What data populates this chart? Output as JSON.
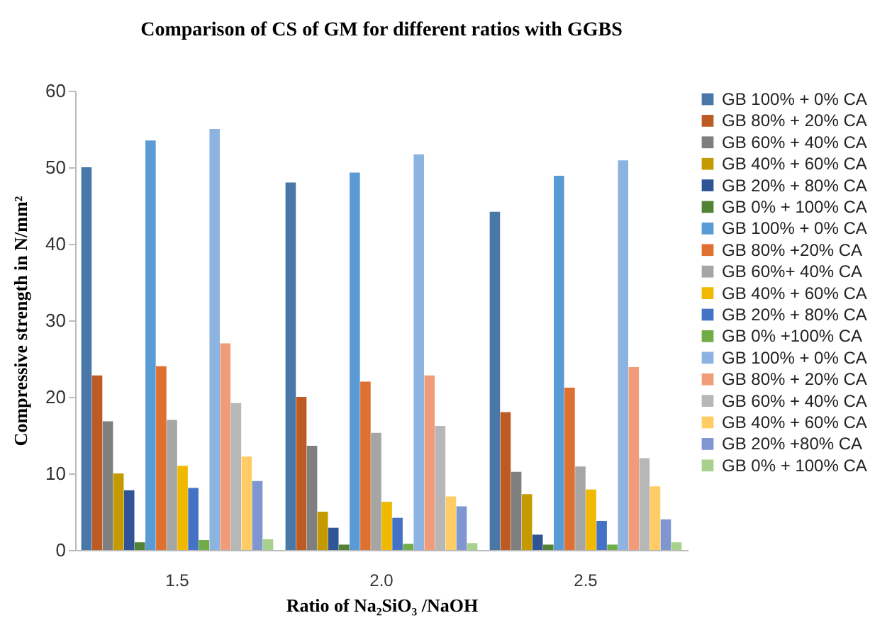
{
  "chart_data": {
    "type": "bar",
    "title": "Comparison of CS of GM for different ratios with GGBS",
    "xlabel": "Ratio of Na₂SiO₃ /NaOH",
    "ylabel": "Compressive strength in N/mm²",
    "categories": [
      "1.5",
      "2.0",
      "2.5"
    ],
    "ylim": [
      0,
      60
    ],
    "yticks": [
      0,
      10,
      20,
      30,
      40,
      50,
      60
    ],
    "legend": "right",
    "series": [
      {
        "name": "GB 100% + 0% CA",
        "color": "#4877a8",
        "values": [
          50,
          48,
          44.2
        ]
      },
      {
        "name": "GB 80% + 20% CA",
        "color": "#bd5b25",
        "values": [
          22.8,
          20,
          18
        ]
      },
      {
        "name": "GB 60% + 40% CA",
        "color": "#7f7f7f",
        "values": [
          16.8,
          13.6,
          10.2
        ]
      },
      {
        "name": "GB 40% + 60% CA",
        "color": "#c49a00",
        "values": [
          10,
          5,
          7.3
        ]
      },
      {
        "name": "GB 20% + 80% CA",
        "color": "#2f5597",
        "values": [
          7.8,
          2.9,
          2
        ]
      },
      {
        "name": "GB 0% + 100% CA",
        "color": "#548235",
        "values": [
          1,
          0.7,
          0.7
        ]
      },
      {
        "name": "GB 100% + 0%  CA",
        "color": "#5b9bd5",
        "values": [
          53.5,
          49.3,
          48.9
        ]
      },
      {
        "name": "GB 80% +20%  CA",
        "color": "#e07030",
        "values": [
          24,
          22,
          21.2
        ]
      },
      {
        "name": "GB 60%+ 40%  CA",
        "color": "#a5a5a5",
        "values": [
          17,
          15.3,
          10.9
        ]
      },
      {
        "name": "GB 40% + 60%  CA",
        "color": "#f0b800",
        "values": [
          11,
          6.3,
          7.9
        ]
      },
      {
        "name": "GB 20% + 80%  CA",
        "color": "#4472c4",
        "values": [
          8.1,
          4.2,
          3.8
        ]
      },
      {
        "name": "GB 0% +100%  CA",
        "color": "#70ad47",
        "values": [
          1.3,
          0.8,
          0.7
        ]
      },
      {
        "name": "GB 100% +  0%  CA",
        "color": "#8db3e0",
        "values": [
          55,
          51.7,
          50.9
        ]
      },
      {
        "name": "GB 80% + 20%  CA",
        "color": "#f19c79",
        "values": [
          27,
          22.8,
          23.9
        ]
      },
      {
        "name": "GB 60% + 40%  CA",
        "color": "#b7b7b7",
        "values": [
          19.2,
          16.2,
          12
        ]
      },
      {
        "name": "GB 40%  + 60%  CA",
        "color": "#ffcc66",
        "values": [
          12.2,
          7,
          8.3
        ]
      },
      {
        "name": "GB 20% +80%  CA",
        "color": "#7f96d0",
        "values": [
          9,
          5.7,
          4
        ]
      },
      {
        "name": "GB 0% + 100%  CA",
        "color": "#a9d18e",
        "values": [
          1.4,
          0.9,
          1
        ]
      }
    ]
  }
}
